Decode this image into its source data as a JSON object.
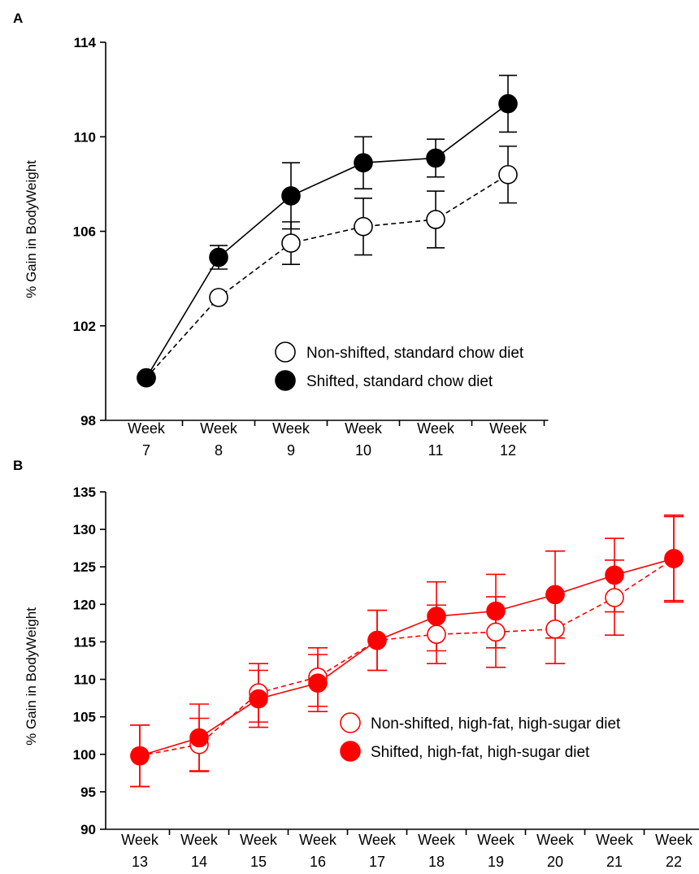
{
  "chart_data": [
    {
      "type": "line",
      "panel_label": "A",
      "ylabel": "% Gain in BodyWeight",
      "ylim": [
        98,
        114
      ],
      "yticks": [
        98,
        102,
        106,
        110,
        114
      ],
      "categories": [
        [
          "Week",
          "7"
        ],
        [
          "Week",
          "8"
        ],
        [
          "Week",
          "9"
        ],
        [
          "Week",
          "10"
        ],
        [
          "Week",
          "11"
        ],
        [
          "Week",
          "12"
        ]
      ],
      "legend_position": "lower-right",
      "series": [
        {
          "name": "Non-shifted, standard chow diet",
          "color": "#000000",
          "marker": "open-circle",
          "line": "dashed",
          "values": [
            99.8,
            103.2,
            105.5,
            106.2,
            106.5,
            108.4
          ],
          "errors": [
            0,
            0,
            0.9,
            1.2,
            1.2,
            1.2
          ]
        },
        {
          "name": "Shifted, standard chow diet",
          "color": "#000000",
          "marker": "filled-circle",
          "line": "solid",
          "values": [
            99.8,
            104.9,
            107.5,
            108.9,
            109.1,
            111.4
          ],
          "errors": [
            0,
            0.5,
            1.4,
            1.1,
            0.8,
            1.2
          ]
        }
      ]
    },
    {
      "type": "line",
      "panel_label": "B",
      "ylabel": "% Gain in BodyWeight",
      "ylim": [
        90,
        135
      ],
      "yticks": [
        90,
        95,
        100,
        105,
        110,
        115,
        120,
        125,
        130,
        135
      ],
      "categories": [
        [
          "Week",
          "13"
        ],
        [
          "Week",
          "14"
        ],
        [
          "Week",
          "15"
        ],
        [
          "Week",
          "16"
        ],
        [
          "Week",
          "17"
        ],
        [
          "Week",
          "18"
        ],
        [
          "Week",
          "19"
        ],
        [
          "Week",
          "20"
        ],
        [
          "Week",
          "21"
        ],
        [
          "Week",
          "22"
        ]
      ],
      "legend_position": "lower-right",
      "series": [
        {
          "name": "Non-shifted, high-fat, high-sugar diet",
          "color": "#ff0000",
          "marker": "open-circle",
          "line": "dashed",
          "values": [
            99.8,
            101.3,
            108.2,
            110.3,
            115.2,
            116.0,
            116.3,
            116.7,
            120.9,
            126.1
          ],
          "errors": [
            4.1,
            3.5,
            3.9,
            3.9,
            4.0,
            3.9,
            4.7,
            4.6,
            5.0,
            5.8
          ]
        },
        {
          "name": "Shifted, high-fat, high-sugar diet",
          "color": "#ff0000",
          "marker": "filled-circle",
          "line": "solid",
          "values": [
            99.8,
            102.2,
            107.4,
            109.5,
            115.2,
            118.4,
            119.1,
            121.3,
            123.9,
            126.1
          ],
          "errors": [
            4.1,
            4.5,
            3.8,
            3.8,
            4.0,
            4.6,
            4.9,
            5.8,
            4.9,
            5.6
          ]
        }
      ]
    }
  ]
}
